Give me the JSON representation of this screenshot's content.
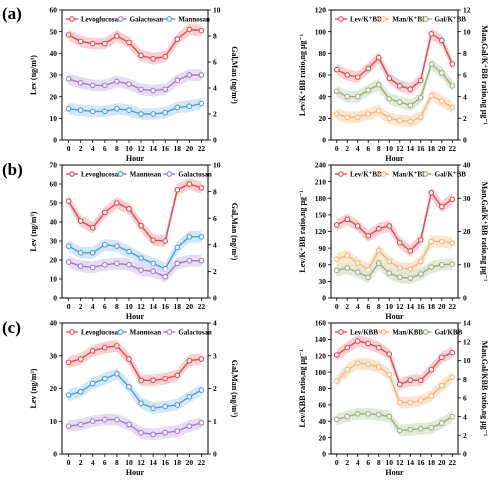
{
  "chart_data": [
    {
      "panel": "(a)",
      "side": "left",
      "type": "line",
      "x": [
        0,
        2,
        4,
        6,
        8,
        10,
        12,
        14,
        16,
        18,
        20,
        22
      ],
      "xlabel": "Hour",
      "ylabel_left": "Lev (ng/m³)",
      "ylim_left": [
        0,
        60
      ],
      "yticks_left": [
        0,
        10,
        20,
        30,
        40,
        50,
        60
      ],
      "ylabel_right": "Gal,Man (ng/m³)",
      "ylim_right": [
        0,
        10
      ],
      "yticks_right": [
        0,
        2,
        4,
        6,
        8,
        10
      ],
      "series": [
        {
          "name": "Levoglucosan",
          "axis": "left",
          "color": "#e8484f",
          "fill": "#f7c9cd",
          "values": [
            48.5,
            45.5,
            44.5,
            44.5,
            48,
            45,
            39,
            37.5,
            38.5,
            46.5,
            51,
            50.5
          ]
        },
        {
          "name": "Galactosan",
          "axis": "right",
          "color": "#a07cc6",
          "fill": "#e3d6f1",
          "values": [
            4.7,
            4.4,
            4.2,
            4.2,
            4.5,
            4.3,
            3.9,
            3.8,
            3.9,
            4.6,
            5.0,
            5.0
          ]
        },
        {
          "name": "Mannosan",
          "axis": "right",
          "color": "#4a9fde",
          "fill": "#cde3f6",
          "values": [
            2.4,
            2.3,
            2.2,
            2.2,
            2.4,
            2.3,
            2.0,
            2.0,
            2.1,
            2.5,
            2.6,
            2.8
          ]
        }
      ]
    },
    {
      "panel": "(a)",
      "side": "right",
      "type": "line",
      "x": [
        0,
        2,
        4,
        6,
        8,
        10,
        12,
        14,
        16,
        18,
        20,
        22
      ],
      "xlabel": "Hour",
      "ylabel_left": "Lev/K⁺BB ratio,ng μg⁻¹",
      "ylim_left": [
        0,
        120
      ],
      "yticks_left": [
        0,
        20,
        40,
        60,
        80,
        100,
        120
      ],
      "ylabel_right": "Man,Gal/K⁺BB ratio,ng μg⁻¹",
      "ylim_right": [
        0,
        12
      ],
      "yticks_right": [
        0,
        2,
        4,
        6,
        8,
        10,
        12
      ],
      "series": [
        {
          "name": "Lev/K⁺BB",
          "axis": "left",
          "color": "#e8484f",
          "fill": "#f7c9cd",
          "values": [
            65,
            60,
            58,
            66,
            76,
            57,
            50,
            47,
            55,
            98,
            92,
            70
          ]
        },
        {
          "name": "Man/K⁺BB",
          "axis": "right",
          "color": "#f5b57a",
          "fill": "#fbe2c8",
          "values": [
            2.4,
            2.1,
            2.1,
            2.4,
            2.7,
            2.0,
            1.8,
            1.7,
            2.1,
            4.1,
            3.6,
            3.0
          ]
        },
        {
          "name": "Gal/K⁺BB",
          "axis": "right",
          "color": "#9cae84",
          "fill": "#dde5d0",
          "values": [
            4.5,
            4.0,
            4.0,
            4.6,
            5.1,
            3.8,
            3.5,
            3.2,
            3.9,
            7.0,
            6.2,
            5.0
          ]
        }
      ]
    },
    {
      "panel": "(b)",
      "side": "left",
      "type": "line",
      "x": [
        0,
        2,
        4,
        6,
        8,
        10,
        12,
        14,
        16,
        18,
        20,
        22
      ],
      "xlabel": "Hour",
      "ylabel_left": "Lev (ng/m³)",
      "ylim_left": [
        0,
        70
      ],
      "yticks_left": [
        0,
        10,
        20,
        30,
        40,
        50,
        60,
        70
      ],
      "ylabel_right": "Gal,Man (ng/m³)",
      "ylim_right": [
        0,
        10
      ],
      "yticks_right": [
        0,
        2,
        4,
        6,
        8,
        10
      ],
      "series": [
        {
          "name": "Levoglucosan",
          "axis": "left",
          "color": "#e8484f",
          "fill": "#f7c9cd",
          "values": [
            51,
            40.5,
            37,
            45,
            50,
            47,
            38,
            30.5,
            30,
            57,
            60,
            58
          ]
        },
        {
          "name": "Mannosan",
          "axis": "right",
          "color": "#4a9fde",
          "fill": "#cde3f6",
          "values": [
            3.9,
            3.4,
            3.4,
            4.0,
            3.9,
            3.5,
            3.0,
            2.6,
            2.2,
            3.8,
            4.6,
            4.6
          ]
        },
        {
          "name": "Galactosan",
          "axis": "right",
          "color": "#a07cc6",
          "fill": "#e3d6f1",
          "values": [
            2.7,
            2.4,
            2.3,
            2.5,
            2.6,
            2.5,
            2.1,
            2.0,
            1.6,
            2.6,
            2.8,
            2.8
          ]
        }
      ]
    },
    {
      "panel": "(b)",
      "side": "right",
      "type": "line",
      "x": [
        0,
        2,
        4,
        6,
        8,
        10,
        12,
        14,
        16,
        18,
        20,
        22
      ],
      "xlabel": "Hour",
      "ylabel_left": "Lev/K⁺BB ratio,ng μg⁻¹",
      "ylim_left": [
        0,
        240
      ],
      "yticks_left": [
        0,
        30,
        60,
        90,
        120,
        150,
        180,
        210,
        240
      ],
      "ylabel_right": "Man,Gal/K⁺BB ratio,ng μg⁻¹",
      "ylim_right": [
        0,
        40
      ],
      "yticks_right": [
        0,
        10,
        20,
        30,
        40
      ],
      "series": [
        {
          "name": "Lev/K⁺BB",
          "axis": "left",
          "color": "#e8484f",
          "fill": "#f7c9cd",
          "values": [
            132,
            142,
            130,
            112,
            125,
            130,
            100,
            85,
            105,
            190,
            165,
            178
          ]
        },
        {
          "name": "Man/K⁺BB",
          "axis": "right",
          "color": "#f5b57a",
          "fill": "#fbe2c8",
          "values": [
            11.7,
            12.8,
            10.5,
            8.5,
            14.3,
            11.0,
            9.0,
            8.7,
            11.0,
            17.0,
            17.0,
            16.5
          ]
        },
        {
          "name": "Gal/K⁺BB",
          "axis": "right",
          "color": "#9cae84",
          "fill": "#dde5d0",
          "values": [
            8.3,
            9.0,
            7.8,
            6.2,
            10.5,
            7.5,
            6.2,
            6.0,
            7.2,
            9.3,
            10.0,
            10.2
          ]
        }
      ]
    },
    {
      "panel": "(c)",
      "side": "left",
      "type": "line",
      "x": [
        0,
        2,
        4,
        6,
        8,
        10,
        12,
        14,
        16,
        18,
        20,
        22
      ],
      "xlabel": "Hour",
      "ylabel_left": "Lev (ng/m³)",
      "ylim_left": [
        0,
        40
      ],
      "yticks_left": [
        0,
        10,
        20,
        30,
        40
      ],
      "ylabel_right": "Gal,Man (ng/m³)",
      "ylim_right": [
        0,
        4
      ],
      "yticks_right": [
        0,
        1,
        2,
        3,
        4
      ],
      "series": [
        {
          "name": "Levoglucosan",
          "axis": "left",
          "color": "#e8484f",
          "fill": "#f7c9cd",
          "values": [
            28,
            29,
            31.5,
            32.5,
            33,
            29,
            22.5,
            22.5,
            23,
            24,
            28.5,
            29
          ]
        },
        {
          "name": "Mannosan",
          "axis": "right",
          "color": "#4a9fde",
          "fill": "#cde3f6",
          "values": [
            1.8,
            1.9,
            2.15,
            2.3,
            2.45,
            2.05,
            1.55,
            1.4,
            1.45,
            1.5,
            1.75,
            1.95
          ]
        },
        {
          "name": "Galactosan",
          "axis": "right",
          "color": "#a07cc6",
          "fill": "#e3d6f1",
          "values": [
            0.85,
            0.9,
            1.0,
            1.05,
            1.05,
            0.9,
            0.65,
            0.6,
            0.65,
            0.7,
            0.85,
            0.95
          ]
        }
      ]
    },
    {
      "panel": "(c)",
      "side": "right",
      "type": "line",
      "x": [
        0,
        2,
        4,
        6,
        8,
        10,
        12,
        14,
        16,
        18,
        20,
        22
      ],
      "xlabel": "Hour",
      "ylabel_left": "Lev/KBB ratio,ng μg⁻¹",
      "ylim_left": [
        0,
        160
      ],
      "yticks_left": [
        0,
        20,
        40,
        60,
        80,
        100,
        120,
        140,
        160
      ],
      "ylabel_right": "Man,Gal/KBB ratio,ng μg⁻¹",
      "ylim_right": [
        0,
        14
      ],
      "yticks_right": [
        0,
        2,
        4,
        6,
        8,
        10,
        12,
        14
      ],
      "series": [
        {
          "name": "Lev/KBB",
          "axis": "left",
          "color": "#e8484f",
          "fill": "#f7c9cd",
          "values": [
            121,
            130,
            138,
            135,
            130,
            122,
            85,
            90,
            90,
            103,
            118,
            124
          ]
        },
        {
          "name": "Man/KBB",
          "axis": "right",
          "color": "#f5b57a",
          "fill": "#fbe2c8",
          "values": [
            7.8,
            9.0,
            9.7,
            9.6,
            9.3,
            8.5,
            5.5,
            5.5,
            5.7,
            6.2,
            7.3,
            8.2
          ]
        },
        {
          "name": "Gal/KBB",
          "axis": "right",
          "color": "#9cae84",
          "fill": "#dde5d0",
          "values": [
            3.7,
            4.0,
            4.3,
            4.3,
            4.2,
            4.0,
            2.5,
            2.6,
            2.7,
            2.8,
            3.3,
            4.0
          ]
        }
      ]
    }
  ],
  "panel_labels": [
    "(a)",
    "(b)",
    "(c)"
  ]
}
